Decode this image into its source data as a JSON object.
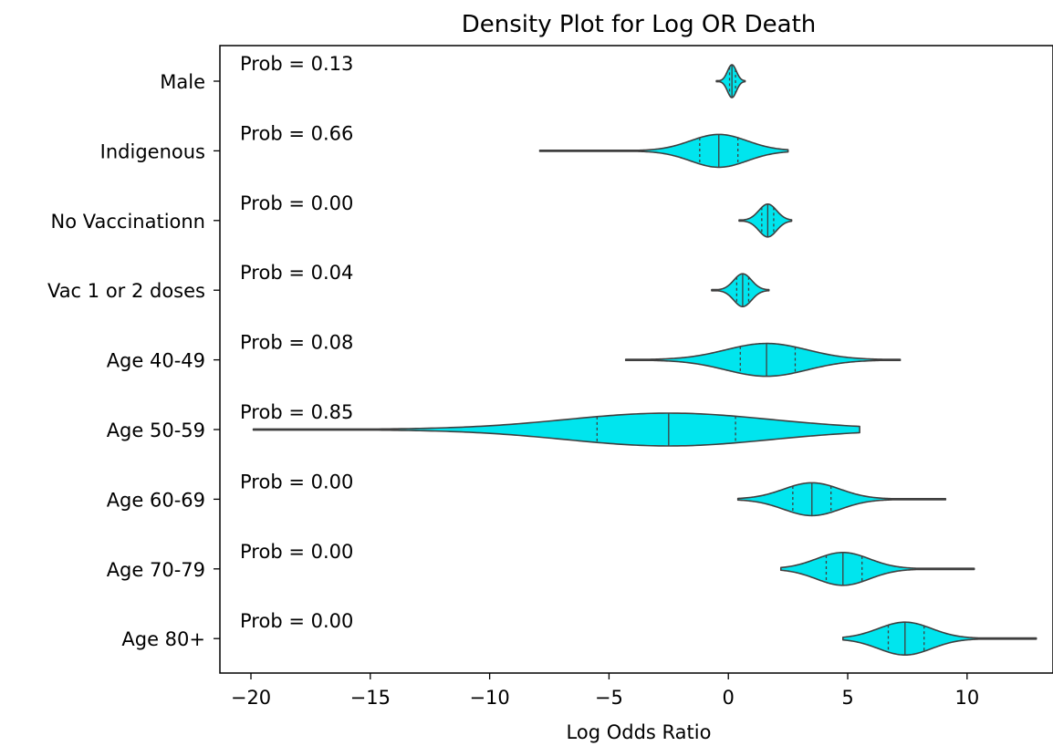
{
  "chart_data": {
    "type": "violin",
    "title": "Density Plot for Log OR Death",
    "xlabel": "Log Odds Ratio",
    "ylabel": "",
    "xlim": [
      -21.3,
      13.6
    ],
    "xticks": [
      -20,
      -15,
      -10,
      -5,
      0,
      5,
      10
    ],
    "xtick_labels": [
      "−20",
      "−15",
      "−10",
      "−5",
      "0",
      "5",
      "10"
    ],
    "grid": false,
    "legend": "none",
    "violin_color": "#00e5ee",
    "edge_color": "#3f3f3f",
    "categories": [
      "Male",
      "Indigenous",
      "No Vaccinationn",
      "Vac 1 or 2 doses",
      "Age 40-49",
      "Age 50-59",
      "Age 60-69",
      "Age 70-79",
      "Age 80+"
    ],
    "annotations": [
      "Prob = 0.13",
      "Prob = 0.66",
      "Prob = 0.00",
      "Prob = 0.04",
      "Prob = 0.08",
      "Prob = 0.85",
      "Prob = 0.00",
      "Prob = 0.00",
      "Prob = 0.00"
    ],
    "series": [
      {
        "category": "Male",
        "min": -0.5,
        "q1": 0.05,
        "median": 0.15,
        "q3": 0.3,
        "max": 0.7,
        "prob": 0.13
      },
      {
        "category": "Indigenous",
        "min": -7.9,
        "q1": -1.2,
        "median": -0.4,
        "q3": 0.4,
        "max": 2.5,
        "prob": 0.66
      },
      {
        "category": "No Vaccinationn",
        "min": 0.45,
        "q1": 1.4,
        "median": 1.65,
        "q3": 1.9,
        "max": 2.65,
        "prob": 0.0
      },
      {
        "category": "Vac 1 or 2 doses",
        "min": -0.7,
        "q1": 0.35,
        "median": 0.6,
        "q3": 0.85,
        "max": 1.7,
        "prob": 0.04
      },
      {
        "category": "Age 40-49",
        "min": -4.3,
        "q1": 0.5,
        "median": 1.6,
        "q3": 2.8,
        "max": 7.2,
        "prob": 0.08
      },
      {
        "category": "Age 50-59",
        "min": -19.9,
        "q1": -5.5,
        "median": -2.5,
        "q3": 0.3,
        "max": 5.5,
        "prob": 0.85
      },
      {
        "category": "Age 60-69",
        "min": 0.4,
        "q1": 2.7,
        "median": 3.5,
        "q3": 4.3,
        "max": 9.1,
        "prob": 0.0
      },
      {
        "category": "Age 70-79",
        "min": 2.2,
        "q1": 4.1,
        "median": 4.8,
        "q3": 5.6,
        "max": 10.3,
        "prob": 0.0
      },
      {
        "category": "Age 80+",
        "min": 4.8,
        "q1": 6.7,
        "median": 7.4,
        "q3": 8.2,
        "max": 12.9,
        "prob": 0.0
      }
    ]
  }
}
